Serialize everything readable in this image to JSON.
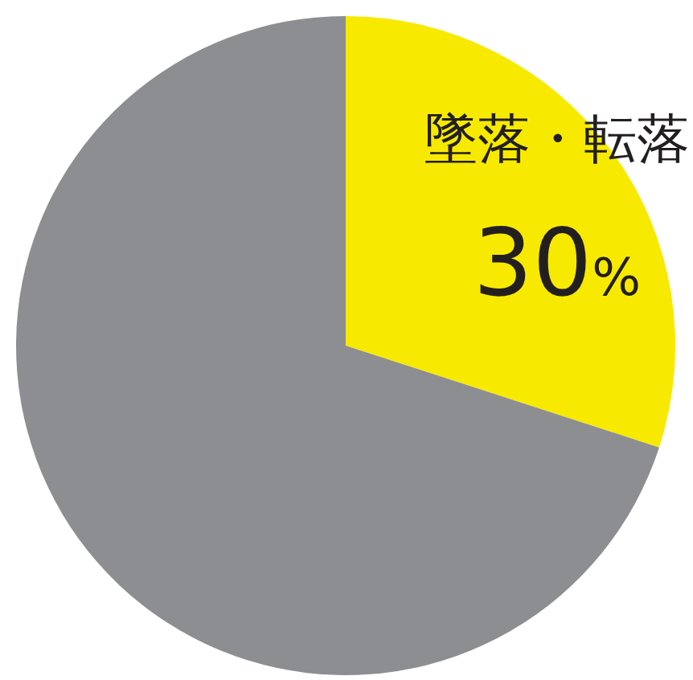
{
  "chart_data": {
    "type": "pie",
    "categories": [
      "墜落・転落",
      null
    ],
    "values": [
      30,
      70
    ],
    "colors": [
      "#f7ea00",
      "#8d8e91"
    ],
    "value_labels": [
      "30%",
      null
    ]
  }
}
